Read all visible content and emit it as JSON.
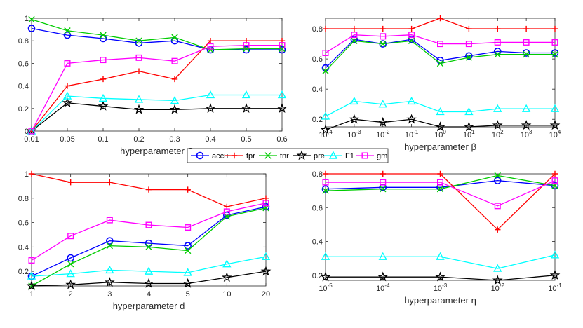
{
  "legend": [
    {
      "key": "accu",
      "label": "accu",
      "color": "#0000ff",
      "marker": "circle"
    },
    {
      "key": "tpr",
      "label": "tpr",
      "color": "#ff0000",
      "marker": "plus"
    },
    {
      "key": "tnr",
      "label": "tnr",
      "color": "#00cc00",
      "marker": "cross"
    },
    {
      "key": "pre",
      "label": "pre",
      "color": "#000000",
      "marker": "star"
    },
    {
      "key": "F1",
      "label": "F1",
      "color": "#00ffff",
      "marker": "triangle"
    },
    {
      "key": "gm",
      "label": "gm",
      "color": "#ff00ff",
      "marker": "square"
    }
  ],
  "chart_data": [
    {
      "type": "line",
      "xlabel": "hyperparameter C",
      "categories": [
        "0.01",
        "0.05",
        "0.1",
        "0.2",
        "0.3",
        "0.4",
        "0.5",
        "0.6"
      ],
      "ylim": [
        0,
        1
      ],
      "yticks": [
        {
          "v": 0,
          "t": "0"
        },
        {
          "v": 0.2,
          "t": "0.2"
        },
        {
          "v": 0.4,
          "t": "0.4"
        },
        {
          "v": 0.6,
          "t": "0.6"
        },
        {
          "v": 0.8,
          "t": "0.8"
        },
        {
          "v": 1,
          "t": "1"
        }
      ],
      "series": [
        {
          "name": "accu",
          "values": [
            0.91,
            0.85,
            0.82,
            0.78,
            0.8,
            0.72,
            0.72,
            0.72
          ]
        },
        {
          "name": "tpr",
          "values": [
            0.0,
            0.4,
            0.46,
            0.53,
            0.46,
            0.8,
            0.8,
            0.8
          ]
        },
        {
          "name": "tnr",
          "values": [
            0.99,
            0.89,
            0.85,
            0.8,
            0.83,
            0.72,
            0.73,
            0.73
          ]
        },
        {
          "name": "pre",
          "values": [
            0.0,
            0.25,
            0.22,
            0.19,
            0.19,
            0.2,
            0.2,
            0.2
          ]
        },
        {
          "name": "F1",
          "values": [
            0.0,
            0.31,
            0.29,
            0.28,
            0.27,
            0.32,
            0.32,
            0.32
          ]
        },
        {
          "name": "gm",
          "values": [
            0.0,
            0.6,
            0.63,
            0.65,
            0.62,
            0.75,
            0.76,
            0.76
          ]
        }
      ]
    },
    {
      "type": "line",
      "xlabel": "hyperparameter β",
      "categories": [
        "1e-4",
        "1e-3",
        "1e-2",
        "1e-1",
        "1e0",
        "1e1",
        "1e2",
        "1e3",
        "1e4"
      ],
      "xticks": [
        {
          "base": "10",
          "exp": "-4"
        },
        {
          "base": "10",
          "exp": "-3"
        },
        {
          "base": "10",
          "exp": "-2"
        },
        {
          "base": "10",
          "exp": "-1"
        },
        {
          "base": "10",
          "exp": "0"
        },
        {
          "base": "10",
          "exp": "1"
        },
        {
          "base": "10",
          "exp": "2"
        },
        {
          "base": "10",
          "exp": "3"
        },
        {
          "base": "10",
          "exp": "4"
        }
      ],
      "ylim": [
        0.15,
        0.87
      ],
      "yticks": [
        {
          "v": 0.2,
          "t": "0.2"
        },
        {
          "v": 0.4,
          "t": "0.4"
        },
        {
          "v": 0.6,
          "t": "0.6"
        },
        {
          "v": 0.8,
          "t": "0.8"
        }
      ],
      "series": [
        {
          "name": "accu",
          "values": [
            0.54,
            0.73,
            0.7,
            0.73,
            0.59,
            0.62,
            0.65,
            0.64,
            0.64
          ]
        },
        {
          "name": "tpr",
          "values": [
            0.8,
            0.8,
            0.8,
            0.8,
            0.87,
            0.8,
            0.8,
            0.8,
            0.8
          ]
        },
        {
          "name": "tnr",
          "values": [
            0.52,
            0.72,
            0.7,
            0.72,
            0.57,
            0.61,
            0.63,
            0.63,
            0.63
          ]
        },
        {
          "name": "pre",
          "values": [
            0.13,
            0.2,
            0.18,
            0.2,
            0.15,
            0.15,
            0.16,
            0.16,
            0.16
          ]
        },
        {
          "name": "F1",
          "values": [
            0.22,
            0.32,
            0.3,
            0.32,
            0.25,
            0.25,
            0.27,
            0.27,
            0.27
          ]
        },
        {
          "name": "gm",
          "values": [
            0.64,
            0.76,
            0.75,
            0.76,
            0.7,
            0.7,
            0.71,
            0.71,
            0.71
          ]
        }
      ]
    },
    {
      "type": "line",
      "xlabel": "hyperparameter d",
      "categories": [
        "1",
        "2",
        "3",
        "4",
        "5",
        "10",
        "20"
      ],
      "ylim": [
        0.08,
        1.0
      ],
      "yticks": [
        {
          "v": 0.2,
          "t": "0.2"
        },
        {
          "v": 0.4,
          "t": "0.4"
        },
        {
          "v": 0.6,
          "t": "0.6"
        },
        {
          "v": 0.8,
          "t": "0.8"
        },
        {
          "v": 1,
          "t": "1"
        }
      ],
      "series": [
        {
          "name": "accu",
          "values": [
            0.16,
            0.31,
            0.45,
            0.43,
            0.41,
            0.66,
            0.73
          ]
        },
        {
          "name": "tpr",
          "values": [
            1.0,
            0.93,
            0.93,
            0.87,
            0.87,
            0.73,
            0.8
          ]
        },
        {
          "name": "tnr",
          "values": [
            0.08,
            0.26,
            0.41,
            0.4,
            0.37,
            0.65,
            0.72
          ]
        },
        {
          "name": "pre",
          "values": [
            0.08,
            0.09,
            0.11,
            0.1,
            0.1,
            0.15,
            0.2
          ]
        },
        {
          "name": "F1",
          "values": [
            0.16,
            0.18,
            0.21,
            0.2,
            0.19,
            0.26,
            0.32
          ]
        },
        {
          "name": "gm",
          "values": [
            0.29,
            0.49,
            0.62,
            0.58,
            0.56,
            0.69,
            0.76
          ]
        }
      ]
    },
    {
      "type": "line",
      "xlabel": "hyperparameter η",
      "categories": [
        "1e-5",
        "1e-4",
        "1e-3",
        "1e-2",
        "1e-1"
      ],
      "xticks": [
        {
          "base": "10",
          "exp": "-5"
        },
        {
          "base": "10",
          "exp": "-4"
        },
        {
          "base": "10",
          "exp": "-3"
        },
        {
          "base": "10",
          "exp": "-2"
        },
        {
          "base": "10",
          "exp": "-1"
        }
      ],
      "ylim": [
        0.17,
        0.8
      ],
      "yticks": [
        {
          "v": 0.2,
          "t": "0.2"
        },
        {
          "v": 0.4,
          "t": "0.4"
        },
        {
          "v": 0.6,
          "t": "0.6"
        },
        {
          "v": 0.8,
          "t": "0.8"
        }
      ],
      "series": [
        {
          "name": "accu",
          "values": [
            0.71,
            0.72,
            0.72,
            0.76,
            0.73
          ]
        },
        {
          "name": "tpr",
          "values": [
            0.8,
            0.8,
            0.8,
            0.47,
            0.8
          ]
        },
        {
          "name": "tnr",
          "values": [
            0.7,
            0.71,
            0.71,
            0.79,
            0.73
          ]
        },
        {
          "name": "pre",
          "values": [
            0.19,
            0.19,
            0.19,
            0.17,
            0.2
          ]
        },
        {
          "name": "F1",
          "values": [
            0.31,
            0.31,
            0.31,
            0.24,
            0.32
          ]
        },
        {
          "name": "gm",
          "values": [
            0.75,
            0.75,
            0.75,
            0.61,
            0.76
          ]
        }
      ]
    }
  ]
}
